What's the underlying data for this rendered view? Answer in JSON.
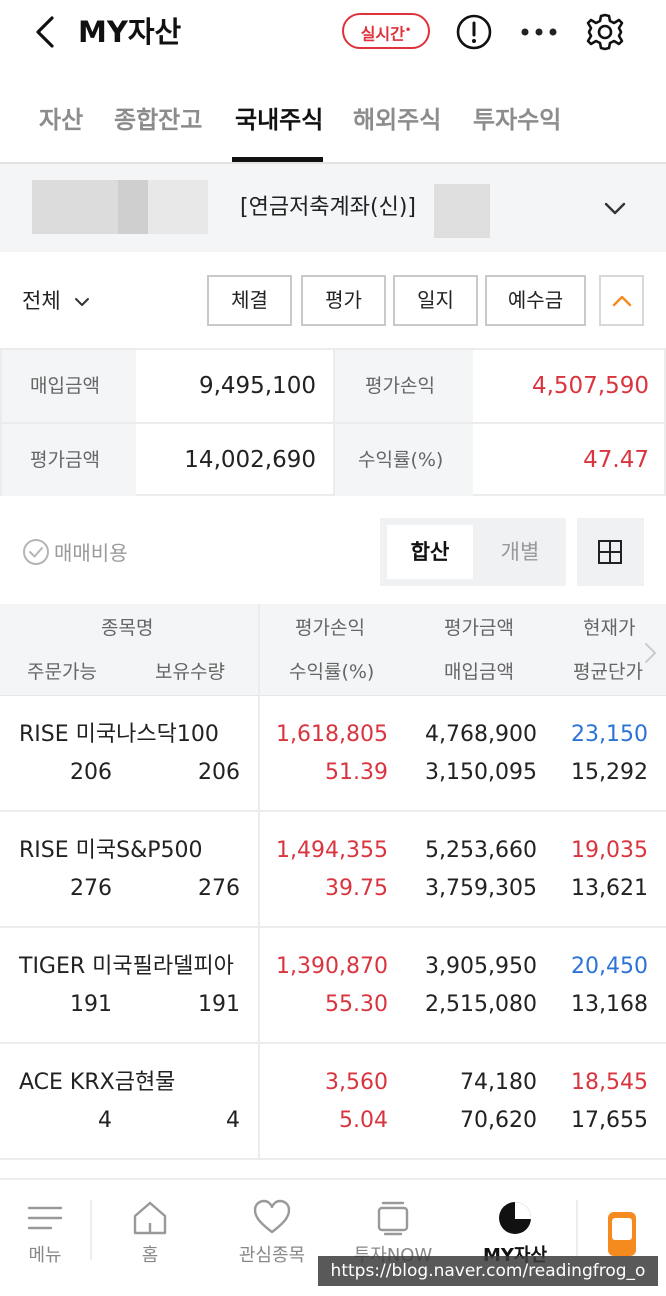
{
  "header": {
    "title": "MY자산",
    "realtime_label": "실시간",
    "realtime_mark": "•"
  },
  "tabs": [
    {
      "label": "자산"
    },
    {
      "label": "종합잔고"
    },
    {
      "label": "국내주식"
    },
    {
      "label": "해외주식"
    },
    {
      "label": "투자수익"
    }
  ],
  "active_tab": "국내주식",
  "account": {
    "name": "[연금저축계좌(신)]"
  },
  "filter": {
    "label": "전체",
    "buttons": [
      {
        "label": "체결"
      },
      {
        "label": "평가"
      },
      {
        "label": "일지"
      },
      {
        "label": "예수금"
      }
    ]
  },
  "summary": {
    "purchase_label": "매입금액",
    "purchase_value": "9,495,100",
    "eval_pl_label": "평가손익",
    "eval_pl_value": "4,507,590",
    "eval_amount_label": "평가금액",
    "eval_amount_value": "14,002,690",
    "return_label": "수익률(%)",
    "return_value": "47.47"
  },
  "controls": {
    "fee_label": "매매비용",
    "toggle_on": "합산",
    "toggle_off": "개별"
  },
  "table": {
    "headers": {
      "name": "종목명",
      "orderable": "주문가능",
      "holding": "보유수량",
      "eval_pl": "평가손익",
      "return": "수익률(%)",
      "eval_amount": "평가금액",
      "purchase": "매입금액",
      "current": "현재가",
      "avg": "평균단가"
    },
    "rows": [
      {
        "name": "RISE 미국나스닥100",
        "orderable": "206",
        "holding": "206",
        "eval_pl": "1,618,805",
        "return": "51.39",
        "eval_amount": "4,768,900",
        "purchase": "3,150,095",
        "current": "23,150",
        "avg": "15,292",
        "current_color": "#2b74d6"
      },
      {
        "name": "RISE 미국S&P500",
        "orderable": "276",
        "holding": "276",
        "eval_pl": "1,494,355",
        "return": "39.75",
        "eval_amount": "5,253,660",
        "purchase": "3,759,305",
        "current": "19,035",
        "avg": "13,621",
        "current_color": "#d9353f"
      },
      {
        "name": "TIGER 미국필라델피아",
        "orderable": "191",
        "holding": "191",
        "eval_pl": "1,390,870",
        "return": "55.30",
        "eval_amount": "3,905,950",
        "purchase": "2,515,080",
        "current": "20,450",
        "avg": "13,168",
        "current_color": "#2b74d6"
      },
      {
        "name": "ACE KRX금현물",
        "orderable": "4",
        "holding": "4",
        "eval_pl": "3,560",
        "return": "5.04",
        "eval_amount": "74,180",
        "purchase": "70,620",
        "current": "18,545",
        "avg": "17,655",
        "current_color": "#d9353f"
      }
    ]
  },
  "bottom_nav": [
    {
      "label": "메뉴",
      "icon": "menu-icon"
    },
    {
      "label": "홈",
      "icon": "home-icon"
    },
    {
      "label": "관심종목",
      "icon": "heart-icon"
    },
    {
      "label": "투자NOW",
      "icon": "invest-now-icon"
    },
    {
      "label": "MY자산",
      "icon": "pie-chart-icon",
      "active": true
    },
    {
      "label": "",
      "icon": "phone-icon"
    }
  ],
  "watermark": "https://blog.naver.com/readingfrog_o",
  "colors": {
    "accent_red": "#d9353f",
    "accent_blue": "#2b74d6",
    "realtime_red": "#e0323c",
    "nav_orange": "#f58a1f"
  }
}
